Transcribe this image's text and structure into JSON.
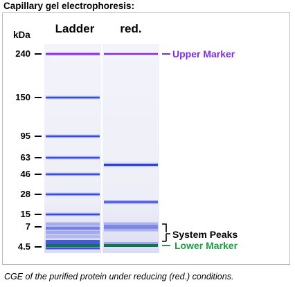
{
  "title": "Capillary gel electrophoresis:",
  "unit_label": "kDa",
  "lanes": [
    {
      "label": "Ladder"
    },
    {
      "label": "red."
    }
  ],
  "markers": [
    {
      "kda": 240,
      "label": "240"
    },
    {
      "kda": 150,
      "label": "150"
    },
    {
      "kda": 95,
      "label": "95"
    },
    {
      "kda": 63,
      "label": "63"
    },
    {
      "kda": 46,
      "label": "46"
    },
    {
      "kda": 28,
      "label": "28"
    },
    {
      "kda": 15,
      "label": "15"
    },
    {
      "kda": 7,
      "label": "7"
    },
    {
      "kda": 4.5,
      "label": "4.5"
    }
  ],
  "bands": {
    "ladder_kda": [
      240,
      150,
      95,
      63,
      46,
      28,
      15
    ],
    "sample_kda": [
      240,
      55,
      22
    ]
  },
  "annotations": {
    "upper_marker": {
      "label": "Upper Marker",
      "color": "#7b2fd8"
    },
    "system_peaks": {
      "label": "System Peaks"
    },
    "lower_marker": {
      "label": "Lower Marker",
      "color": "#1f9d45"
    }
  },
  "colors": {
    "band": "#2a3fd6",
    "upper_marker": "#8a2be2",
    "lower_marker": "#0a7a45"
  },
  "caption": "CGE of the purified protein under reducing (red.) conditions."
}
